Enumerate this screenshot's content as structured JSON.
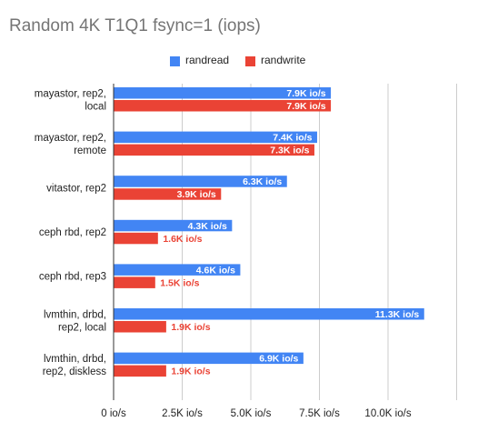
{
  "chart_data": {
    "type": "bar",
    "orientation": "horizontal",
    "title": "Random 4K T1Q1 fsync=1 (iops)",
    "categories": [
      [
        "mayastor, rep2,",
        "local"
      ],
      [
        "mayastor, rep2,",
        "remote"
      ],
      [
        "vitastor, rep2"
      ],
      [
        "ceph rbd, rep2"
      ],
      [
        "ceph rbd, rep3"
      ],
      [
        "lvmthin, drbd,",
        "rep2, local"
      ],
      [
        "lvmthin, drbd,",
        "rep2, diskless"
      ]
    ],
    "series": [
      {
        "name": "randread",
        "color": "#4285f4",
        "values": [
          7900,
          7400,
          6300,
          4300,
          4600,
          11300,
          6900
        ],
        "labels": [
          "7.9K io/s",
          "7.4K io/s",
          "6.3K io/s",
          "4.3K io/s",
          "4.6K io/s",
          "11.3K io/s",
          "6.9K io/s"
        ]
      },
      {
        "name": "randwrite",
        "color": "#ea4335",
        "values": [
          7900,
          7300,
          3900,
          1600,
          1500,
          1900,
          1900
        ],
        "labels": [
          "7.9K io/s",
          "7.3K io/s",
          "3.9K io/s",
          "1.6K io/s",
          "1.5K io/s",
          "1.9K io/s",
          "1.9K io/s"
        ]
      }
    ],
    "xlim": [
      0,
      12500
    ],
    "xticks": [
      0,
      2500,
      5000,
      7500,
      10000
    ],
    "xtick_labels": [
      "0 io/s",
      "2.5K io/s",
      "5.0K io/s",
      "7.5K io/s",
      "10.0K io/s"
    ],
    "grid": true,
    "legend_position": "top"
  }
}
